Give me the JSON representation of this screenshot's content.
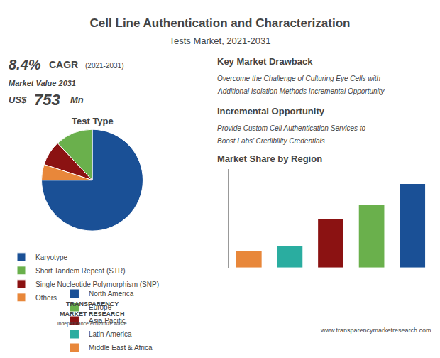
{
  "title": "Cell Line Authentication and Characterization",
  "subtitle": "Tests Market, 2021-2031",
  "annotations": [
    "8.4%",
    "CAGR",
    "(2021-2031)",
    "Market Value 2031",
    "US$",
    "753",
    "Mn",
    "Key Market Drawback",
    "Overcome the Challenge of Culturing Eye Cells with",
    "Additional Isolation Methods Incremental Opportunity",
    "Incremental Opportunity",
    "Provide Custom Cell Authentication Services to",
    "Boost Labs’ Credibility Credentials",
    "TRANSPARENCY",
    "MARKET RESEARCH",
    "independance ecolamize waste",
    "www.transparencymarketresearch.com"
  ],
  "chart_data": [
    {
      "type": "pie",
      "title": "Test Type",
      "categories": [
        "Karyotype",
        "Short Tandem Repeat (STR)",
        "Single Nucleotide Polymorphism (SNP)",
        "Others"
      ],
      "values": [
        75,
        12,
        8,
        5
      ],
      "colors": [
        "#1a5096",
        "#6ab04c",
        "#8b1212",
        "#e8873a"
      ],
      "legend": "bottom"
    },
    {
      "type": "bar",
      "title": "Market Share by Region",
      "categories": [
        "Middle East & Africa",
        "Latin America",
        "Asia Pacific",
        "Europe",
        "North America"
      ],
      "values": [
        15,
        20,
        45,
        58,
        78
      ],
      "colors": [
        "#e8873a",
        "#2aada0",
        "#8b1212",
        "#6ab04c",
        "#1a5096"
      ],
      "ylim": [
        0,
        92
      ],
      "tick_labels": false,
      "grid": false,
      "legend": "bottom"
    }
  ]
}
